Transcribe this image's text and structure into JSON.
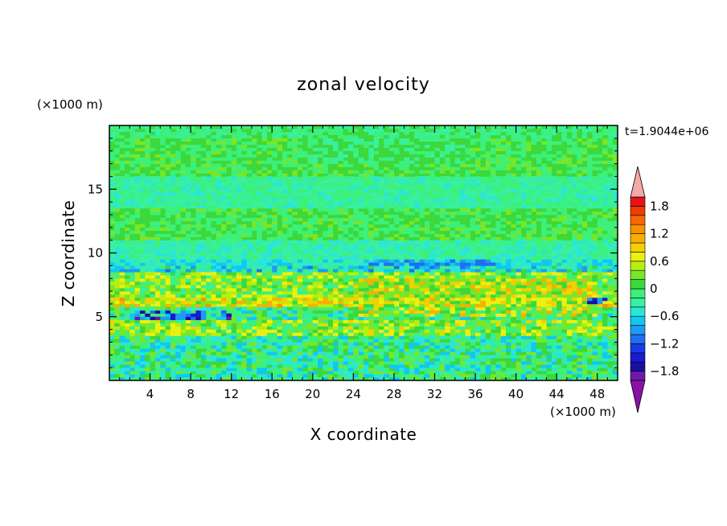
{
  "chart_data": {
    "type": "heatmap",
    "title": "zonal velocity",
    "xlabel": "X coordinate",
    "ylabel": "Z coordinate",
    "x_unit": "(×1000 m)",
    "y_unit": "(×1000 m)",
    "time_label": "t=1.9044e+06",
    "xlim": [
      0,
      50
    ],
    "ylim": [
      0,
      20
    ],
    "x_ticks": [
      4,
      8,
      12,
      16,
      20,
      24,
      28,
      32,
      36,
      40,
      44,
      48
    ],
    "x_tick_labels": [
      "4",
      "8",
      "12",
      "16",
      "20",
      "24",
      "28",
      "32",
      "36",
      "40",
      "44",
      "48"
    ],
    "y_ticks": [
      5,
      10,
      15
    ],
    "y_tick_labels": [
      "5",
      "10",
      "15"
    ],
    "colorbar": {
      "levels": [
        -2.0,
        -1.8,
        -1.6,
        -1.4,
        -1.2,
        -1.0,
        -0.8,
        -0.6,
        -0.4,
        -0.2,
        0.0,
        0.2,
        0.4,
        0.6,
        0.8,
        1.0,
        1.2,
        1.4,
        1.6,
        1.8,
        2.0
      ],
      "colors": [
        "#6a1aa8",
        "#1a10a0",
        "#1a1ad0",
        "#1a3ae8",
        "#1f6ff0",
        "#1e9af2",
        "#10c8f0",
        "#2ae6d8",
        "#38f0a0",
        "#3cf07a",
        "#3cd83c",
        "#7ae628",
        "#b8ee10",
        "#ecf010",
        "#f4d000",
        "#f8b000",
        "#f89000",
        "#f86800",
        "#f03c00",
        "#e61414"
      ],
      "tick_values": [
        1.8,
        1.2,
        0.6,
        0,
        -0.6,
        -1.2,
        -1.8
      ],
      "tick_labels": [
        "1.8",
        "1.2",
        "0.6",
        "0",
        "−0.6",
        "−1.2",
        "−1.8"
      ],
      "over_color": "#f4a8a8",
      "under_color": "#8a10a8"
    },
    "field_bands": [
      {
        "z_from": 19.0,
        "z_to": 20.0,
        "value": -0.1
      },
      {
        "z_from": 16.0,
        "z_to": 19.0,
        "value": 0.05
      },
      {
        "z_from": 13.5,
        "z_to": 16.0,
        "value": -0.25
      },
      {
        "z_from": 11.0,
        "z_to": 13.5,
        "value": 0.05
      },
      {
        "z_from": 9.5,
        "z_to": 11.0,
        "value": -0.3
      },
      {
        "z_from": 8.5,
        "z_to": 9.5,
        "value": -0.5
      },
      {
        "z_from": 6.5,
        "z_to": 8.5,
        "value": 0.25
      },
      {
        "z_from": 5.8,
        "z_to": 6.5,
        "value": 0.7
      },
      {
        "z_from": 4.8,
        "z_to": 5.8,
        "value": -0.2
      },
      {
        "z_from": 3.5,
        "z_to": 4.8,
        "value": 0.3
      },
      {
        "z_from": 0.0,
        "z_to": 3.5,
        "value": -0.2
      }
    ],
    "field_patches": [
      {
        "x_from": 2.5,
        "x_to": 12.0,
        "z_from": 4.8,
        "z_to": 5.5,
        "value": -1.3
      },
      {
        "x_from": 12.0,
        "x_to": 24.0,
        "z_from": 6.8,
        "z_to": 8.5,
        "value": 0.3
      },
      {
        "x_from": 24.0,
        "x_to": 48.0,
        "z_from": 5.0,
        "z_to": 8.0,
        "value": 0.55
      },
      {
        "x_from": 25.0,
        "x_to": 38.0,
        "z_from": 9.0,
        "z_to": 9.6,
        "value": -0.9
      },
      {
        "x_from": 47.0,
        "x_to": 49.0,
        "z_from": 6.0,
        "z_to": 6.5,
        "value": -1.3
      },
      {
        "x_from": 20.0,
        "x_to": 35.0,
        "z_from": 17.0,
        "z_to": 20.0,
        "value": -0.1
      }
    ]
  }
}
